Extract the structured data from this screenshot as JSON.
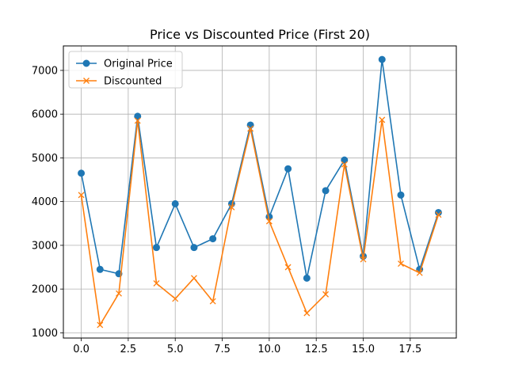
{
  "chart_data": {
    "type": "line",
    "title": "Price vs Discounted Price (First 20)",
    "xlabel": "",
    "ylabel": "",
    "xlim": [
      -0.95,
      19.95
    ],
    "ylim": [
      880,
      7560
    ],
    "x_ticks": [
      0.0,
      2.5,
      5.0,
      7.5,
      10.0,
      12.5,
      15.0,
      17.5
    ],
    "x_tick_labels": [
      "0.0",
      "2.5",
      "5.0",
      "7.5",
      "10.0",
      "12.5",
      "15.0",
      "17.5"
    ],
    "y_ticks": [
      1000,
      2000,
      3000,
      4000,
      5000,
      6000,
      7000
    ],
    "y_tick_labels": [
      "1000",
      "2000",
      "3000",
      "4000",
      "5000",
      "6000",
      "7000"
    ],
    "grid": true,
    "legend_position": "top-left",
    "x": [
      0,
      1,
      2,
      3,
      4,
      5,
      6,
      7,
      8,
      9,
      10,
      11,
      12,
      13,
      14,
      15,
      16,
      17,
      18,
      19
    ],
    "series": [
      {
        "name": "Original Price",
        "color": "#1f77b4",
        "marker": "circle",
        "values": [
          4650,
          2450,
          2350,
          5950,
          2950,
          3950,
          2950,
          3150,
          3950,
          5750,
          3650,
          4750,
          2250,
          4250,
          4950,
          2750,
          7250,
          4150,
          2450,
          3750
        ]
      },
      {
        "name": "Discounted",
        "color": "#ff7f0e",
        "marker": "x",
        "values": [
          4150,
          1180,
          1900,
          5850,
          2130,
          1780,
          2250,
          1720,
          3870,
          5670,
          3550,
          2500,
          1450,
          1880,
          4850,
          2680,
          5870,
          2580,
          2370,
          3700
        ]
      }
    ]
  }
}
